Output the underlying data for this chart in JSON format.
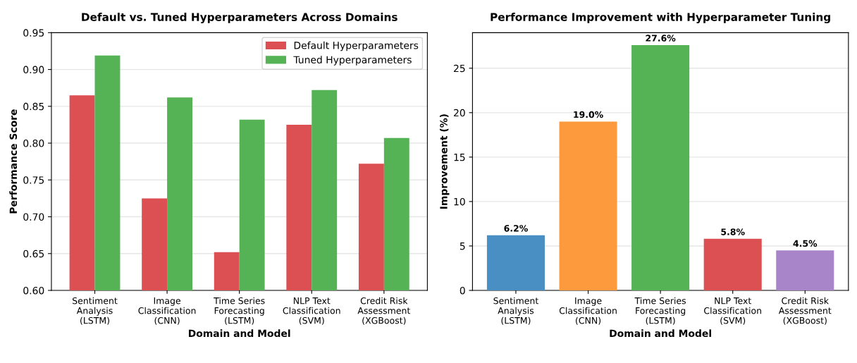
{
  "chart_data": [
    {
      "type": "bar",
      "title": "Default vs. Tuned Hyperparameters Across Domains",
      "xlabel": "Domain and Model",
      "ylabel": "Performance Score",
      "categories": [
        "Sentiment\nAnalysis\n(LSTM)",
        "Image\nClassification\n(CNN)",
        "Time Series\nForecasting\n(LSTM)",
        "NLP Text\nClassification\n(SVM)",
        "Credit Risk\nAssessment\n(XGBoost)"
      ],
      "series": [
        {
          "name": "Default Hyperparameters",
          "color": "#dc4f52",
          "values": [
            0.865,
            0.725,
            0.652,
            0.825,
            0.772
          ]
        },
        {
          "name": "Tuned Hyperparameters",
          "color": "#55b255",
          "values": [
            0.919,
            0.862,
            0.832,
            0.872,
            0.807
          ]
        }
      ],
      "ylim": [
        0.6,
        0.95
      ],
      "yticks": [
        {
          "value": 0.6,
          "label": "0.60"
        },
        {
          "value": 0.65,
          "label": "0.65"
        },
        {
          "value": 0.7,
          "label": "0.70"
        },
        {
          "value": 0.75,
          "label": "0.75"
        },
        {
          "value": 0.8,
          "label": "0.80"
        },
        {
          "value": 0.85,
          "label": "0.85"
        },
        {
          "value": 0.9,
          "label": "0.90"
        },
        {
          "value": 0.95,
          "label": "0.95"
        }
      ],
      "grid": "y",
      "legend": "top right"
    },
    {
      "type": "bar",
      "title": "Performance Improvement with Hyperparameter Tuning",
      "xlabel": "Domain and Model",
      "ylabel": "Improvement (%)",
      "categories": [
        "Sentiment\nAnalysis\n(LSTM)",
        "Image\nClassification\n(CNN)",
        "Time Series\nForecasting\n(LSTM)",
        "NLP Text\nClassification\n(SVM)",
        "Credit Risk\nAssessment\n(XGBoost)"
      ],
      "values": [
        6.2,
        19.0,
        27.6,
        5.8,
        4.5
      ],
      "colors": [
        "#4a8fc4",
        "#fd9a3d",
        "#55b255",
        "#dc4f52",
        "#a884c8"
      ],
      "value_labels": [
        "6.2%",
        "19.0%",
        "27.6%",
        "5.8%",
        "4.5%"
      ],
      "ylim": [
        0,
        29
      ],
      "yticks": [
        0,
        5,
        10,
        15,
        20,
        25
      ],
      "grid": "y"
    }
  ]
}
